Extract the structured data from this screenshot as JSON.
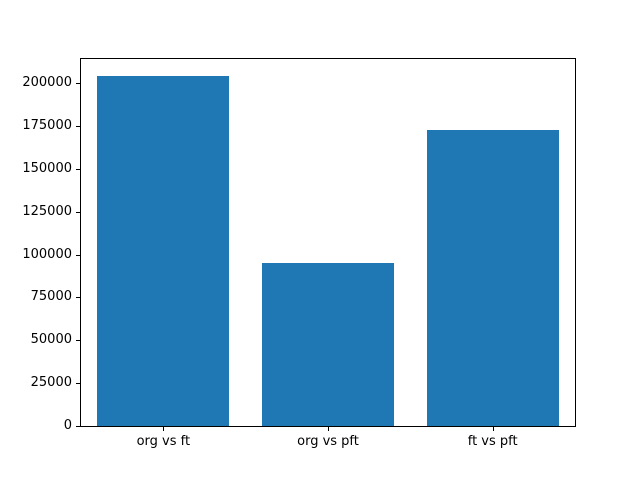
{
  "figure": {
    "background": "#ffffff",
    "axes_color": "#000000"
  },
  "chart_data": {
    "type": "bar",
    "title": "",
    "xlabel": "",
    "ylabel": "",
    "categories": [
      "org vs ft",
      "org vs pft",
      "ft vs pft"
    ],
    "values": [
      204000,
      95000,
      173000
    ],
    "ylim": [
      0,
      214200
    ],
    "yticks": [
      0,
      25000,
      50000,
      75000,
      100000,
      125000,
      150000,
      175000,
      200000
    ],
    "ytick_labels": [
      "0",
      "25000",
      "50000",
      "75000",
      "100000",
      "125000",
      "150000",
      "175000",
      "200000"
    ],
    "bar_color": "#1f77b4",
    "bar_width_fraction": 0.8,
    "grid": false,
    "legend": null
  }
}
